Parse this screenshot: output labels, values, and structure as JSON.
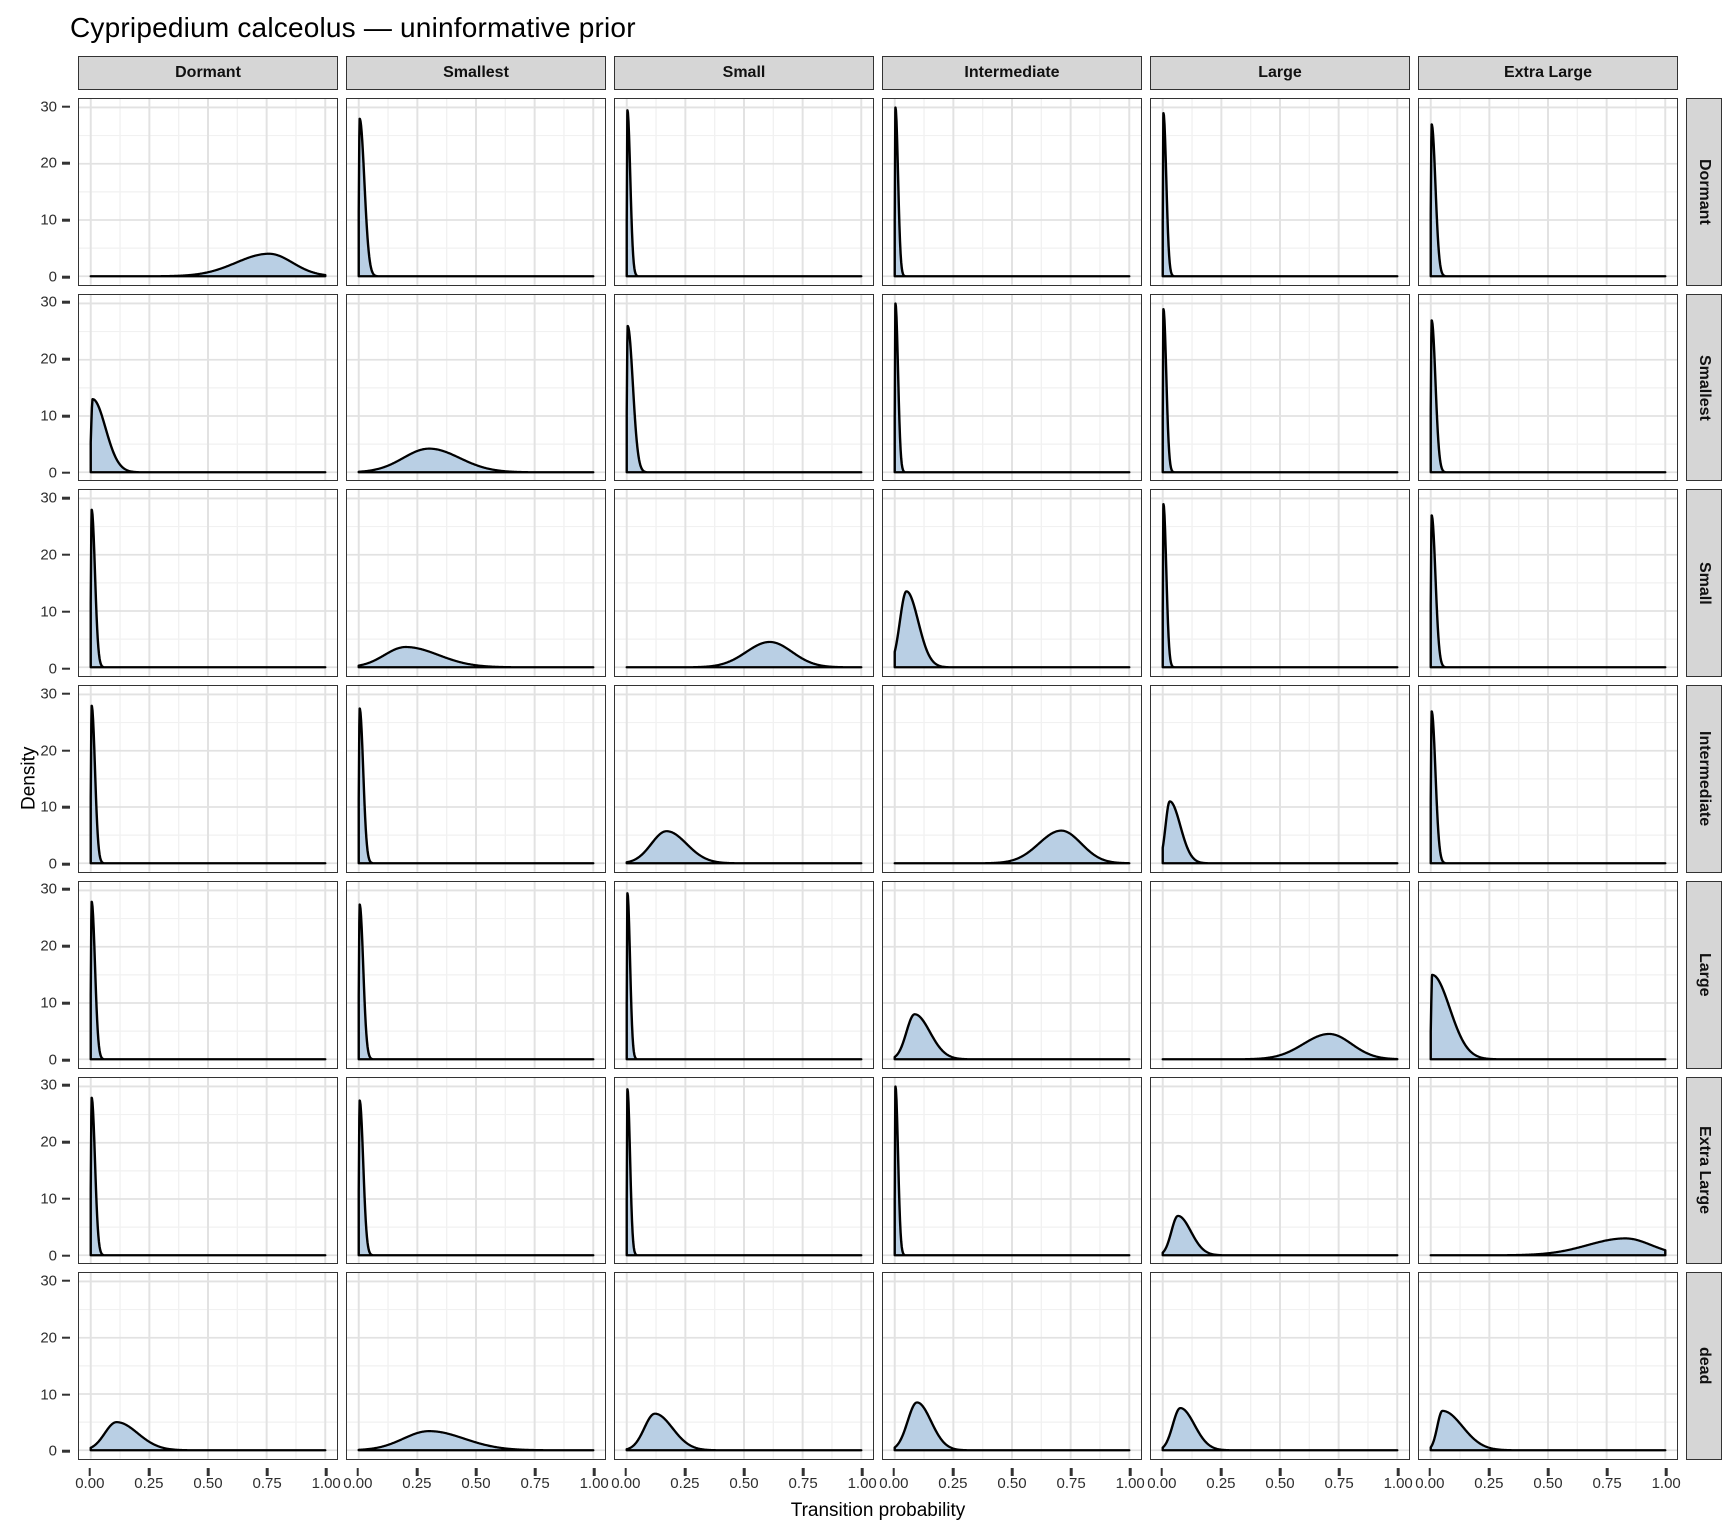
{
  "title": "Cypripedium calceolus — uninformative prior",
  "colors": {
    "fill": "#b9cfe4",
    "stroke": "#000000",
    "strip_bg": "#d6d6d6",
    "grid_major": "#e2e2e2",
    "grid_minor": "#f1f1f1",
    "panel_border": "#333333"
  },
  "chart_data": {
    "type": "area",
    "subtype": "faceted-density-grid",
    "title": "Cypripedium calceolus — uninformative prior",
    "xlabel": "Transition probability",
    "ylabel": "Density",
    "xlim": [
      0,
      1
    ],
    "ylim": [
      0,
      30
    ],
    "grid": "on",
    "legend": "none",
    "x_ticks": [
      {
        "v": 0.0,
        "label": "0.00"
      },
      {
        "v": 0.25,
        "label": "0.25"
      },
      {
        "v": 0.5,
        "label": "0.50"
      },
      {
        "v": 0.75,
        "label": "0.75"
      },
      {
        "v": 1.0,
        "label": "1.00"
      }
    ],
    "y_ticks": [
      {
        "v": 0,
        "label": "0"
      },
      {
        "v": 10,
        "label": "10"
      },
      {
        "v": 20,
        "label": "20"
      },
      {
        "v": 30,
        "label": "30"
      }
    ],
    "facet_cols": [
      "Dormant",
      "Smallest",
      "Small",
      "Intermediate",
      "Large",
      "Extra Large"
    ],
    "facet_rows": [
      "Dormant",
      "Smallest",
      "Small",
      "Intermediate",
      "Large",
      "Extra Large",
      "dead"
    ],
    "panels_note": "Each panel is a posterior density of a transition probability; parameterized as an asymmetric gaussian bump: peak_x (mode), peak_y (density at mode), sd_left/sd_right (spread each side).",
    "panels": [
      [
        {
          "peak_x": 0.76,
          "peak_y": 4.0,
          "sd_left": 0.14,
          "sd_right": 0.1
        },
        {
          "peak_x": 0.004,
          "peak_y": 28.0,
          "sd_left": 0.003,
          "sd_right": 0.02
        },
        {
          "peak_x": 0.003,
          "peak_y": 29.5,
          "sd_left": 0.002,
          "sd_right": 0.012
        },
        {
          "peak_x": 0.003,
          "peak_y": 30.0,
          "sd_left": 0.002,
          "sd_right": 0.011
        },
        {
          "peak_x": 0.003,
          "peak_y": 29.0,
          "sd_left": 0.002,
          "sd_right": 0.012
        },
        {
          "peak_x": 0.004,
          "peak_y": 27.0,
          "sd_left": 0.003,
          "sd_right": 0.016
        }
      ],
      [
        {
          "peak_x": 0.008,
          "peak_y": 13.0,
          "sd_left": 0.006,
          "sd_right": 0.055
        },
        {
          "peak_x": 0.3,
          "peak_y": 4.2,
          "sd_left": 0.11,
          "sd_right": 0.13
        },
        {
          "peak_x": 0.004,
          "peak_y": 26.0,
          "sd_left": 0.003,
          "sd_right": 0.022
        },
        {
          "peak_x": 0.003,
          "peak_y": 30.0,
          "sd_left": 0.002,
          "sd_right": 0.011
        },
        {
          "peak_x": 0.003,
          "peak_y": 29.0,
          "sd_left": 0.002,
          "sd_right": 0.012
        },
        {
          "peak_x": 0.004,
          "peak_y": 27.0,
          "sd_left": 0.003,
          "sd_right": 0.016
        }
      ],
      [
        {
          "peak_x": 0.004,
          "peak_y": 28.0,
          "sd_left": 0.003,
          "sd_right": 0.014
        },
        {
          "peak_x": 0.2,
          "peak_y": 3.6,
          "sd_left": 0.09,
          "sd_right": 0.14
        },
        {
          "peak_x": 0.61,
          "peak_y": 4.5,
          "sd_left": 0.1,
          "sd_right": 0.095
        },
        {
          "peak_x": 0.05,
          "peak_y": 13.5,
          "sd_left": 0.028,
          "sd_right": 0.05
        },
        {
          "peak_x": 0.003,
          "peak_y": 29.0,
          "sd_left": 0.002,
          "sd_right": 0.012
        },
        {
          "peak_x": 0.004,
          "peak_y": 27.0,
          "sd_left": 0.003,
          "sd_right": 0.016
        }
      ],
      [
        {
          "peak_x": 0.004,
          "peak_y": 28.0,
          "sd_left": 0.003,
          "sd_right": 0.014
        },
        {
          "peak_x": 0.004,
          "peak_y": 27.5,
          "sd_left": 0.003,
          "sd_right": 0.015
        },
        {
          "peak_x": 0.17,
          "peak_y": 5.7,
          "sd_left": 0.065,
          "sd_right": 0.085
        },
        {
          "peak_x": 0.71,
          "peak_y": 5.8,
          "sd_left": 0.095,
          "sd_right": 0.085
        },
        {
          "peak_x": 0.03,
          "peak_y": 11.0,
          "sd_left": 0.018,
          "sd_right": 0.045
        },
        {
          "peak_x": 0.004,
          "peak_y": 27.0,
          "sd_left": 0.003,
          "sd_right": 0.016
        }
      ],
      [
        {
          "peak_x": 0.004,
          "peak_y": 28.0,
          "sd_left": 0.003,
          "sd_right": 0.014
        },
        {
          "peak_x": 0.004,
          "peak_y": 27.5,
          "sd_left": 0.003,
          "sd_right": 0.015
        },
        {
          "peak_x": 0.003,
          "peak_y": 29.5,
          "sd_left": 0.002,
          "sd_right": 0.011
        },
        {
          "peak_x": 0.085,
          "peak_y": 8.0,
          "sd_left": 0.035,
          "sd_right": 0.065
        },
        {
          "peak_x": 0.71,
          "peak_y": 4.5,
          "sd_left": 0.11,
          "sd_right": 0.095
        },
        {
          "peak_x": 0.006,
          "peak_y": 15.0,
          "sd_left": 0.004,
          "sd_right": 0.075
        }
      ],
      [
        {
          "peak_x": 0.004,
          "peak_y": 28.0,
          "sd_left": 0.003,
          "sd_right": 0.014
        },
        {
          "peak_x": 0.004,
          "peak_y": 27.5,
          "sd_left": 0.003,
          "sd_right": 0.015
        },
        {
          "peak_x": 0.003,
          "peak_y": 29.5,
          "sd_left": 0.002,
          "sd_right": 0.011
        },
        {
          "peak_x": 0.003,
          "peak_y": 30.0,
          "sd_left": 0.002,
          "sd_right": 0.011
        },
        {
          "peak_x": 0.065,
          "peak_y": 7.0,
          "sd_left": 0.028,
          "sd_right": 0.055
        },
        {
          "peak_x": 0.83,
          "peak_y": 3.0,
          "sd_left": 0.16,
          "sd_right": 0.11
        }
      ],
      [
        {
          "peak_x": 0.11,
          "peak_y": 5.0,
          "sd_left": 0.05,
          "sd_right": 0.09
        },
        {
          "peak_x": 0.3,
          "peak_y": 3.4,
          "sd_left": 0.11,
          "sd_right": 0.15
        },
        {
          "peak_x": 0.12,
          "peak_y": 6.5,
          "sd_left": 0.045,
          "sd_right": 0.075
        },
        {
          "peak_x": 0.095,
          "peak_y": 8.5,
          "sd_left": 0.04,
          "sd_right": 0.06
        },
        {
          "peak_x": 0.075,
          "peak_y": 7.5,
          "sd_left": 0.032,
          "sd_right": 0.06
        },
        {
          "peak_x": 0.05,
          "peak_y": 7.0,
          "sd_left": 0.022,
          "sd_right": 0.085
        }
      ]
    ]
  }
}
